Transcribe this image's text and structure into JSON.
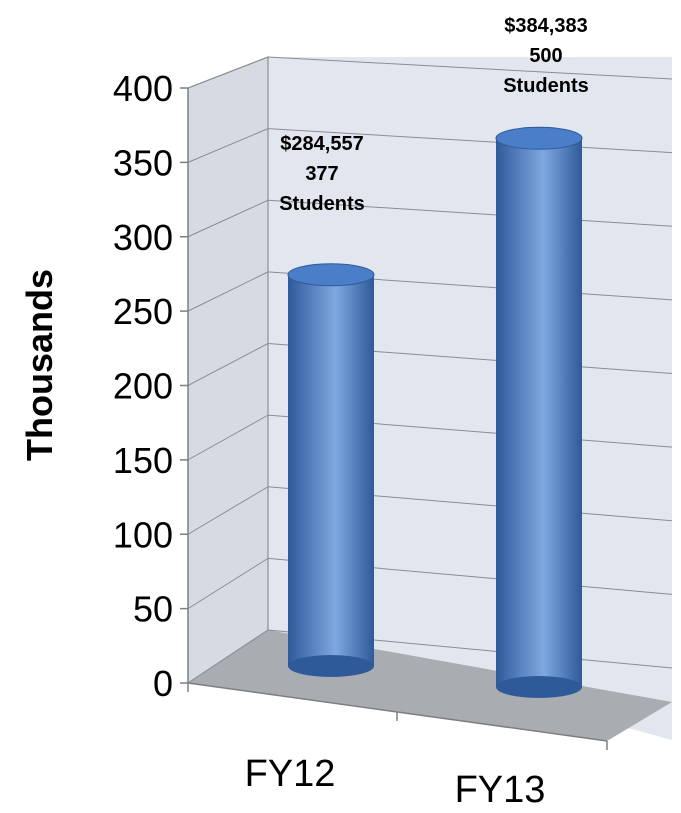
{
  "chart_data": {
    "type": "bar",
    "style": "3d-cylinder",
    "categories": [
      "FY12",
      "FY13"
    ],
    "values": [
      284.557,
      384.383
    ],
    "data_labels": [
      [
        "$284,557",
        "377",
        "Students"
      ],
      [
        "$384,383",
        "500",
        "Students"
      ]
    ],
    "ylabel": "Thousands",
    "ylim": [
      0,
      400
    ],
    "yticks": [
      "0",
      "50",
      "100",
      "150",
      "200",
      "250",
      "300",
      "350",
      "400"
    ],
    "grid": true,
    "legend": "none",
    "colors": {
      "bar_main": "#4a7ec9",
      "bar_light": "#7fa8e0",
      "bar_dark": "#2f5a9a",
      "back_wall": "#e2e6ee",
      "side_wall": "#d6dae2",
      "floor": "#a9acb0",
      "grid": "#8a8d92",
      "axis": "#7f7f7f"
    }
  }
}
